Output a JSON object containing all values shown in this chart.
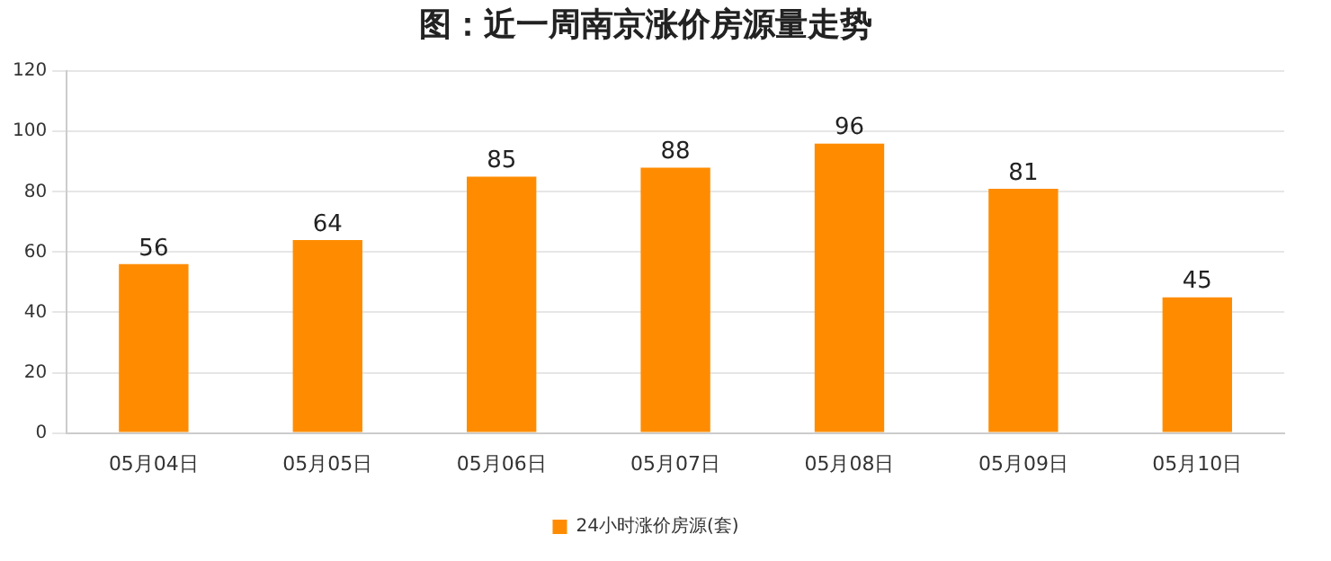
{
  "chart_data": {
    "type": "bar",
    "title": "图：近一周南京涨价房源量走势",
    "categories": [
      "05月04日",
      "05月05日",
      "05月06日",
      "05月07日",
      "05月08日",
      "05月09日",
      "05月10日"
    ],
    "series": [
      {
        "name": "24小时涨价房源(套)",
        "color": "#ff8c00",
        "values": [
          56,
          64,
          85,
          88,
          96,
          81,
          45
        ]
      }
    ],
    "ylim": [
      0,
      120
    ],
    "yticks": [
      0,
      20,
      40,
      60,
      80,
      100,
      120
    ],
    "grid": "y",
    "legend": "bottom",
    "data_labels": true
  }
}
